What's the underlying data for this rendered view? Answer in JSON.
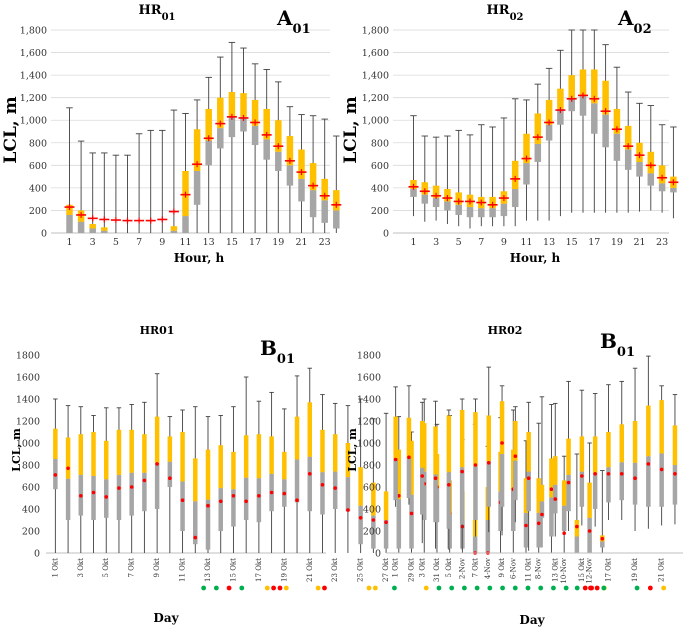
{
  "palette": {
    "box_lower": "#a6a6a6",
    "box_upper": "#ffc000",
    "whisker": "#404040",
    "mean_marker": "#ff0000",
    "grid": "#d9d9d9",
    "dot_green": "#00b050",
    "dot_red": "#ff0000",
    "dot_yellow": "#ffc000"
  },
  "chart_data": [
    {
      "id": "A01",
      "type": "boxplot",
      "title": "HR01",
      "title_sub": "01",
      "panel_label": "A",
      "panel_label_sub": "01",
      "xlabel": "Hour, h",
      "ylabel": "LCL, m",
      "ylim": [
        0,
        1800
      ],
      "yticks": [
        "0",
        "200",
        "400",
        "600",
        "800",
        "1,000",
        "1,200",
        "1,400",
        "1,600",
        "1,800"
      ],
      "x": [
        1,
        2,
        3,
        4,
        5,
        6,
        7,
        8,
        9,
        10,
        11,
        12,
        13,
        14,
        15,
        16,
        17,
        18,
        19,
        20,
        21,
        22,
        23,
        24
      ],
      "xticklabels": [
        "1",
        "3",
        "5",
        "7",
        "9",
        "11",
        "13",
        "15",
        "17",
        "19",
        "21",
        "23"
      ],
      "grid": true,
      "min": [
        0,
        0,
        0,
        0,
        0,
        0,
        0,
        0,
        0,
        0,
        0,
        0,
        0,
        0,
        0,
        0,
        0,
        0,
        0,
        0,
        0,
        0,
        0,
        0
      ],
      "q1": [
        0,
        0,
        0,
        0,
        0,
        0,
        0,
        0,
        0,
        0,
        0,
        250,
        600,
        750,
        850,
        900,
        780,
        650,
        550,
        420,
        280,
        140,
        90,
        40
      ],
      "median": [
        160,
        100,
        40,
        20,
        0,
        0,
        0,
        0,
        0,
        20,
        150,
        550,
        820,
        930,
        1030,
        1030,
        950,
        830,
        720,
        600,
        480,
        380,
        290,
        200
      ],
      "q3": [
        250,
        200,
        80,
        50,
        0,
        0,
        0,
        0,
        0,
        60,
        550,
        920,
        1100,
        1200,
        1250,
        1240,
        1180,
        1100,
        1000,
        860,
        740,
        620,
        480,
        380
      ],
      "max": [
        1110,
        815,
        710,
        710,
        690,
        690,
        880,
        910,
        910,
        1090,
        1060,
        1180,
        1380,
        1560,
        1690,
        1640,
        1500,
        1450,
        1340,
        1120,
        1050,
        1040,
        1010,
        860
      ],
      "mean": [
        230,
        160,
        130,
        120,
        115,
        110,
        110,
        110,
        120,
        190,
        340,
        610,
        840,
        970,
        1030,
        1020,
        980,
        870,
        770,
        640,
        540,
        420,
        330,
        250
      ]
    },
    {
      "id": "A02",
      "type": "boxplot",
      "title": "HR02",
      "title_sub": "02",
      "panel_label": "A",
      "panel_label_sub": "02",
      "xlabel": "Hour, h",
      "ylabel": "LCL, m",
      "ylim": [
        0,
        1800
      ],
      "yticks": [
        "0",
        "200",
        "400",
        "600",
        "800",
        "1,000",
        "1,200",
        "1,400",
        "1,600",
        "1,800"
      ],
      "x": [
        1,
        2,
        3,
        4,
        5,
        6,
        7,
        8,
        9,
        10,
        11,
        12,
        13,
        14,
        15,
        16,
        17,
        18,
        19,
        20,
        21,
        22,
        23,
        24
      ],
      "xticklabels": [
        "1",
        "3",
        "5",
        "7",
        "9",
        "11",
        "13",
        "15",
        "17",
        "19",
        "21",
        "23"
      ],
      "grid": true,
      "min": [
        150,
        100,
        110,
        80,
        60,
        40,
        60,
        60,
        60,
        60,
        110,
        110,
        110,
        150,
        180,
        180,
        180,
        180,
        180,
        180,
        190,
        200,
        180,
        130
      ],
      "q1": [
        320,
        260,
        230,
        200,
        160,
        140,
        140,
        140,
        150,
        230,
        430,
        630,
        820,
        960,
        1080,
        1040,
        880,
        760,
        640,
        560,
        500,
        420,
        370,
        360
      ],
      "median": [
        390,
        340,
        310,
        280,
        250,
        230,
        220,
        220,
        260,
        390,
        620,
        790,
        960,
        1100,
        1200,
        1220,
        1150,
        1050,
        880,
        740,
        630,
        530,
        440,
        400
      ],
      "q3": [
        470,
        450,
        420,
        390,
        360,
        340,
        320,
        320,
        370,
        640,
        880,
        1060,
        1180,
        1280,
        1400,
        1450,
        1450,
        1350,
        1100,
        950,
        800,
        720,
        600,
        500
      ],
      "max": [
        1040,
        860,
        850,
        860,
        910,
        870,
        960,
        940,
        1020,
        1190,
        1180,
        1320,
        1460,
        1620,
        1800,
        1800,
        1800,
        1670,
        1470,
        1250,
        1150,
        1130,
        960,
        940
      ],
      "mean": [
        410,
        370,
        330,
        310,
        280,
        280,
        270,
        250,
        310,
        480,
        660,
        850,
        980,
        1090,
        1190,
        1220,
        1190,
        1080,
        920,
        770,
        690,
        600,
        490,
        450
      ]
    },
    {
      "id": "B01",
      "type": "boxplot",
      "title": "HR01",
      "panel_label": "B",
      "panel_label_sub": "01",
      "xlabel": "Day",
      "ylabel": "LCL, m",
      "ylim": [
        0,
        1800
      ],
      "yticks": [
        "0",
        "200",
        "400",
        "600",
        "800",
        "1000",
        "1200",
        "1400",
        "1600",
        "1800"
      ],
      "xticklabels": [
        "1 Okt",
        "3 Okt",
        "5 Okt",
        "7 Okt",
        "9 Okt",
        "11 Okt",
        "13 Okt",
        "15 Okt",
        "17 Okt",
        "19 Okt",
        "21 Okt",
        "23 Okt",
        "25 Okt",
        "27 Okt",
        "29 Okt",
        "31 Okt",
        "2-Nov",
        "4-Nov",
        "6-Nov",
        "8-Nov",
        "10-Nov",
        "12-Nov"
      ],
      "grid": false,
      "min": [
        0,
        0,
        0,
        0,
        0,
        0,
        0,
        0,
        0,
        0,
        0,
        0,
        0,
        0,
        0,
        0,
        0,
        0,
        0,
        0,
        0,
        0,
        0,
        0,
        0,
        0,
        0,
        0,
        0,
        0,
        0,
        0,
        0,
        0,
        0,
        0,
        0,
        0,
        0,
        0,
        0,
        0,
        0,
        0
      ],
      "q1": [
        580,
        300,
        340,
        300,
        320,
        300,
        340,
        380,
        400,
        600,
        200,
        80,
        30,
        200,
        240,
        300,
        280,
        380,
        420,
        460,
        380,
        350,
        400,
        380,
        80,
        40,
        40,
        40,
        40,
        300,
        280,
        40,
        40,
        0,
        0,
        200,
        200,
        50,
        50,
        150,
        200,
        0,
        0,
        50
      ],
      "q3": [
        1130,
        1050,
        1080,
        1100,
        1020,
        1120,
        1120,
        1080,
        1240,
        1060,
        1100,
        860,
        940,
        980,
        920,
        1070,
        1080,
        1060,
        920,
        1240,
        1370,
        1120,
        1080,
        1000,
        780,
        640,
        560,
        940,
        1020,
        1180,
        900,
        660,
        560,
        300,
        600,
        920,
        940,
        680,
        680,
        860,
        660,
        300,
        640,
        160
      ],
      "max": [
        1400,
        1340,
        1330,
        1250,
        1320,
        1320,
        1350,
        1370,
        1630,
        1240,
        1300,
        1330,
        1240,
        1250,
        1330,
        1600,
        1380,
        1460,
        1310,
        1610,
        1680,
        1440,
        1360,
        1340,
        1400,
        1220,
        1270,
        1240,
        1100,
        1400,
        1170,
        1250,
        1030,
        1170,
        970,
        1230,
        1300,
        1020,
        1180,
        1350,
        880,
        900,
        1000,
        750
      ],
      "mean": [
        710,
        770,
        520,
        550,
        510,
        590,
        600,
        660,
        810,
        680,
        480,
        140,
        430,
        470,
        520,
        470,
        520,
        550,
        540,
        480,
        720,
        620,
        590,
        390,
        320,
        300,
        280,
        520,
        360,
        630,
        600,
        360,
        240,
        0,
        0,
        460,
        580,
        250,
        270,
        580,
        180,
        240,
        200,
        130
      ],
      "dots": [
        {
          "slot": 24,
          "c": "green"
        },
        {
          "slot": 26,
          "c": "green"
        },
        {
          "slot": 28,
          "c": "red"
        },
        {
          "slot": 30,
          "c": "green"
        },
        {
          "slot": 34,
          "c": "yellow"
        },
        {
          "slot": 35,
          "c": "red"
        },
        {
          "slot": 36,
          "c": "red"
        },
        {
          "slot": 37,
          "c": "yellow"
        },
        {
          "slot": 42,
          "c": "yellow"
        },
        {
          "slot": 43,
          "c": "red"
        },
        {
          "slot": 50,
          "c": "yellow"
        },
        {
          "slot": 51,
          "c": "yellow"
        },
        {
          "slot": 54,
          "c": "green"
        },
        {
          "slot": 59,
          "c": "yellow"
        },
        {
          "slot": 61,
          "c": "green"
        },
        {
          "slot": 63,
          "c": "green"
        },
        {
          "slot": 65,
          "c": "green"
        },
        {
          "slot": 67,
          "c": "green"
        },
        {
          "slot": 69,
          "c": "green"
        },
        {
          "slot": 71,
          "c": "green"
        },
        {
          "slot": 73,
          "c": "green"
        },
        {
          "slot": 75,
          "c": "green"
        },
        {
          "slot": 77,
          "c": "green"
        },
        {
          "slot": 79,
          "c": "green"
        },
        {
          "slot": 81,
          "c": "green"
        },
        {
          "slot": 84,
          "c": "red"
        },
        {
          "slot": 85,
          "c": "red"
        },
        {
          "slot": 87,
          "c": "yellow"
        }
      ]
    },
    {
      "id": "B02",
      "type": "boxplot",
      "title": "HR02",
      "panel_label": "B",
      "panel_label_sub": "01",
      "xlabel": "Day",
      "ylabel": "LCL, m",
      "ylim": [
        0,
        1800
      ],
      "yticks": [
        "0",
        "200",
        "400",
        "600",
        "800",
        "1000",
        "1200",
        "1400",
        "1600",
        "1800"
      ],
      "xticklabels": [
        "1 Okt",
        "3 Okt",
        "5 Okt",
        "7 Okt",
        "9 Okt",
        "11 Okt",
        "13 Okt",
        "15 Okt",
        "17 Okt",
        "19 Okt",
        "21 Okt",
        "23 Okt",
        "25 Okt",
        "27 Okt",
        "29 Okt",
        "31 Okt",
        "2-Nov",
        "4-Nov",
        "6-Nov",
        "8-Nov",
        "10-Nov",
        "12-Nov"
      ],
      "grid": false,
      "min": [
        420,
        440,
        90,
        40,
        30,
        30,
        150,
        190,
        160,
        280,
        20,
        50,
        150,
        200,
        250,
        240,
        300,
        300,
        200,
        220,
        250,
        260,
        190,
        180,
        170,
        240,
        200,
        220,
        210,
        200,
        130,
        230,
        100,
        100,
        40,
        50,
        120,
        140,
        150,
        220,
        210,
        170,
        200,
        230
      ],
      "q1": [
        480,
        500,
        350,
        280,
        220,
        260,
        300,
        420,
        420,
        480,
        380,
        320,
        360,
        380,
        420,
        400,
        460,
        480,
        440,
        420,
        420,
        440,
        460,
        420,
        380,
        360,
        420,
        440,
        400,
        400,
        360,
        400,
        300,
        120,
        120,
        260,
        380,
        400,
        380,
        400,
        360,
        300,
        320,
        350
      ],
      "q3": [
        1240,
        1230,
        1200,
        1150,
        1250,
        1300,
        1280,
        1250,
        1380,
        1200,
        1100,
        620,
        880,
        1040,
        1060,
        1060,
        1100,
        1170,
        1200,
        1340,
        1390,
        1160,
        1160,
        920,
        870,
        950,
        1050,
        1200,
        1060,
        1190,
        1130,
        880,
        620,
        430,
        500,
        1230,
        1150,
        1050,
        960,
        1080,
        1040,
        560,
        700,
        550
      ],
      "max": [
        1510,
        1520,
        1370,
        1380,
        1300,
        1400,
        1400,
        1690,
        1520,
        1330,
        1370,
        1420,
        1360,
        1560,
        1480,
        1450,
        1530,
        1560,
        1680,
        1790,
        1520,
        1440,
        1480,
        1400,
        1300,
        1510,
        1360,
        1480,
        1350,
        1420,
        1440,
        1370,
        1030,
        750,
        1050,
        1490,
        1530,
        1330,
        1390,
        1220,
        1080,
        1010,
        1050,
        1020
      ],
      "mean": [
        850,
        870,
        700,
        680,
        620,
        740,
        800,
        820,
        1000,
        880,
        680,
        350,
        490,
        640,
        700,
        720,
        720,
        720,
        680,
        810,
        760,
        720,
        680,
        560,
        500,
        520,
        520,
        820,
        650,
        760,
        750,
        540,
        590,
        410,
        120,
        750,
        820,
        480,
        420,
        720,
        530,
        380,
        400,
        480
      ],
      "dots": [
        {
          "slot": 28,
          "c": "green"
        },
        {
          "slot": 30,
          "c": "red"
        },
        {
          "slot": 31,
          "c": "red"
        },
        {
          "slot": 32,
          "c": "green"
        },
        {
          "slot": 37,
          "c": "green"
        },
        {
          "slot": 39,
          "c": "red"
        },
        {
          "slot": 41,
          "c": "yellow"
        },
        {
          "slot": 46,
          "c": "yellow"
        },
        {
          "slot": 51,
          "c": "yellow"
        },
        {
          "slot": 53,
          "c": "red"
        },
        {
          "slot": 56,
          "c": "green"
        },
        {
          "slot": 58,
          "c": "green"
        },
        {
          "slot": 60,
          "c": "green"
        },
        {
          "slot": 62,
          "c": "green"
        },
        {
          "slot": 64,
          "c": "green"
        },
        {
          "slot": 66,
          "c": "red"
        },
        {
          "slot": 68,
          "c": "yellow"
        },
        {
          "slot": 70,
          "c": "yellow"
        },
        {
          "slot": 72,
          "c": "red"
        },
        {
          "slot": 74,
          "c": "yellow"
        },
        {
          "slot": 77,
          "c": "green"
        },
        {
          "slot": 79,
          "c": "yellow"
        },
        {
          "slot": 81,
          "c": "red"
        },
        {
          "slot": 83,
          "c": "red"
        }
      ]
    }
  ]
}
